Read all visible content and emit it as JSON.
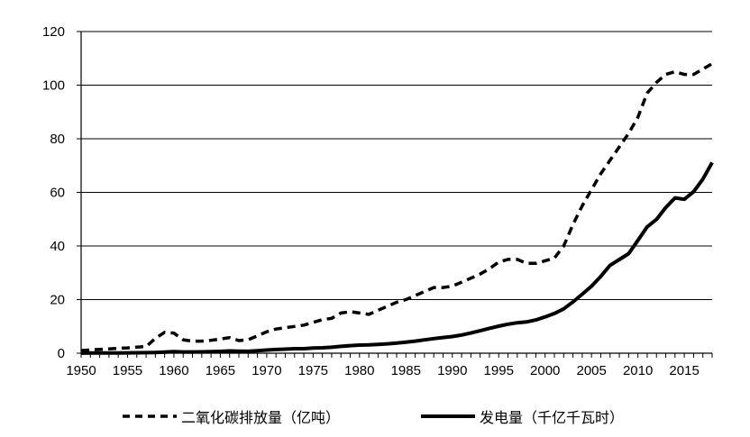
{
  "chart_data": {
    "type": "line",
    "title": "",
    "xlabel": "",
    "ylabel": "",
    "xlim": [
      1950,
      2018
    ],
    "ylim": [
      0,
      120
    ],
    "y_ticks": [
      "0",
      "20",
      "40",
      "60",
      "80",
      "100",
      "120"
    ],
    "x_ticks": [
      "1950",
      "1955",
      "1960",
      "1965",
      "1970",
      "1975",
      "1980",
      "1985",
      "1990",
      "1995",
      "2000",
      "2005",
      "2010",
      "2015"
    ],
    "grid": "horizontal",
    "legend_position": "bottom",
    "x": [
      1950,
      1951,
      1952,
      1953,
      1954,
      1955,
      1956,
      1957,
      1958,
      1959,
      1960,
      1961,
      1962,
      1963,
      1964,
      1965,
      1966,
      1967,
      1968,
      1969,
      1970,
      1971,
      1972,
      1973,
      1974,
      1975,
      1976,
      1977,
      1978,
      1979,
      1980,
      1981,
      1982,
      1983,
      1984,
      1985,
      1986,
      1987,
      1988,
      1989,
      1990,
      1991,
      1992,
      1993,
      1994,
      1995,
      1996,
      1997,
      1998,
      1999,
      2000,
      2001,
      2002,
      2003,
      2004,
      2005,
      2006,
      2007,
      2008,
      2009,
      2010,
      2011,
      2012,
      2013,
      2014,
      2015,
      2016,
      2017,
      2018
    ],
    "series": [
      {
        "name": "二氧化碳排放量（亿吨）",
        "style": "dashed",
        "color": "#000000",
        "values": [
          1.0,
          1.2,
          1.4,
          1.6,
          1.8,
          2.0,
          2.3,
          2.5,
          5.5,
          7.8,
          7.5,
          5.0,
          4.5,
          4.5,
          4.8,
          5.3,
          5.8,
          4.7,
          5.0,
          6.5,
          8.0,
          9.0,
          9.5,
          10.0,
          10.5,
          11.5,
          12.5,
          13.0,
          15.0,
          15.5,
          15.0,
          14.5,
          16.0,
          17.5,
          19.0,
          20.0,
          21.5,
          23.0,
          24.5,
          24.5,
          25.0,
          26.5,
          28.0,
          29.5,
          31.5,
          34.0,
          35.0,
          35.0,
          33.5,
          33.5,
          34.5,
          35.5,
          40.0,
          48.0,
          55.0,
          61.0,
          67.0,
          72.0,
          77.0,
          82.0,
          88.0,
          97.0,
          101.0,
          104.0,
          105.0,
          104.0,
          104.0,
          106.0,
          108.0
        ]
      },
      {
        "name": "发电量（千亿千瓦时）",
        "style": "solid",
        "color": "#000000",
        "values": [
          0.05,
          0.06,
          0.07,
          0.09,
          0.11,
          0.12,
          0.17,
          0.19,
          0.28,
          0.42,
          0.59,
          0.48,
          0.46,
          0.49,
          0.56,
          0.68,
          0.83,
          0.77,
          0.72,
          0.94,
          1.16,
          1.38,
          1.52,
          1.67,
          1.69,
          1.96,
          2.03,
          2.23,
          2.57,
          2.82,
          3.01,
          3.09,
          3.28,
          3.51,
          3.77,
          4.11,
          4.5,
          4.97,
          5.45,
          5.85,
          6.21,
          6.78,
          7.54,
          8.36,
          9.28,
          10.07,
          10.81,
          11.36,
          11.67,
          12.39,
          13.56,
          14.81,
          16.54,
          19.11,
          22.03,
          25.0,
          28.66,
          32.82,
          34.96,
          37.15,
          42.07,
          47.13,
          49.88,
          54.32,
          57.95,
          57.4,
          60.23,
          64.95,
          71.12
        ]
      }
    ]
  }
}
